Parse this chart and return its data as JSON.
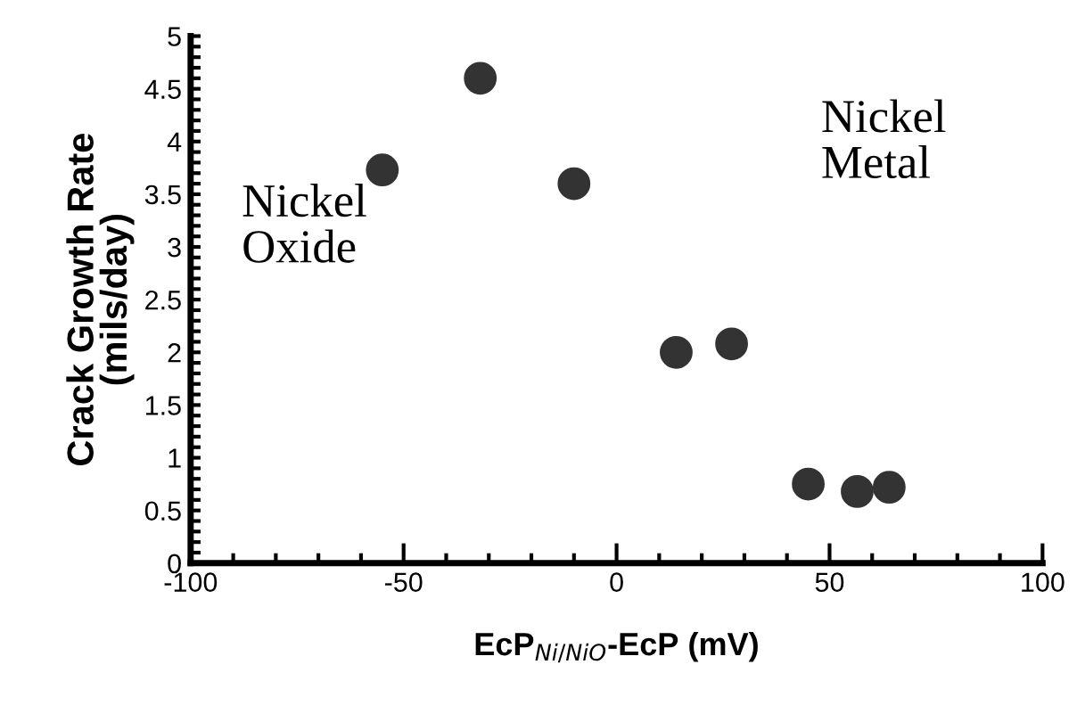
{
  "chart_data": {
    "type": "scatter",
    "xlabel": "EcP$_{Ni/NiO}$-EcP (mV)",
    "ylabel": "Crack Growth Rate\n(mils/day)",
    "annotations": [
      "Nickel\nOxide",
      "Nickel\nMetal"
    ],
    "series": [
      {
        "color": "#333333",
        "x": [
          -55,
          -32,
          -10,
          14,
          27,
          45,
          56.5,
          64
        ],
        "values": [
          3.73,
          4.6,
          3.6,
          2.0,
          2.08,
          0.75,
          0.68,
          0.72
        ]
      }
    ],
    "marker": "circle",
    "xlim": [
      -100,
      100
    ],
    "ylim": [
      0,
      5
    ],
    "xticks": [
      -100,
      -50,
      0,
      50,
      100
    ],
    "yticks": [
      0,
      0.5,
      1,
      1.5,
      2,
      2.5,
      3,
      3.5,
      4,
      4.5,
      5
    ],
    "grid": false,
    "legend": false
  }
}
